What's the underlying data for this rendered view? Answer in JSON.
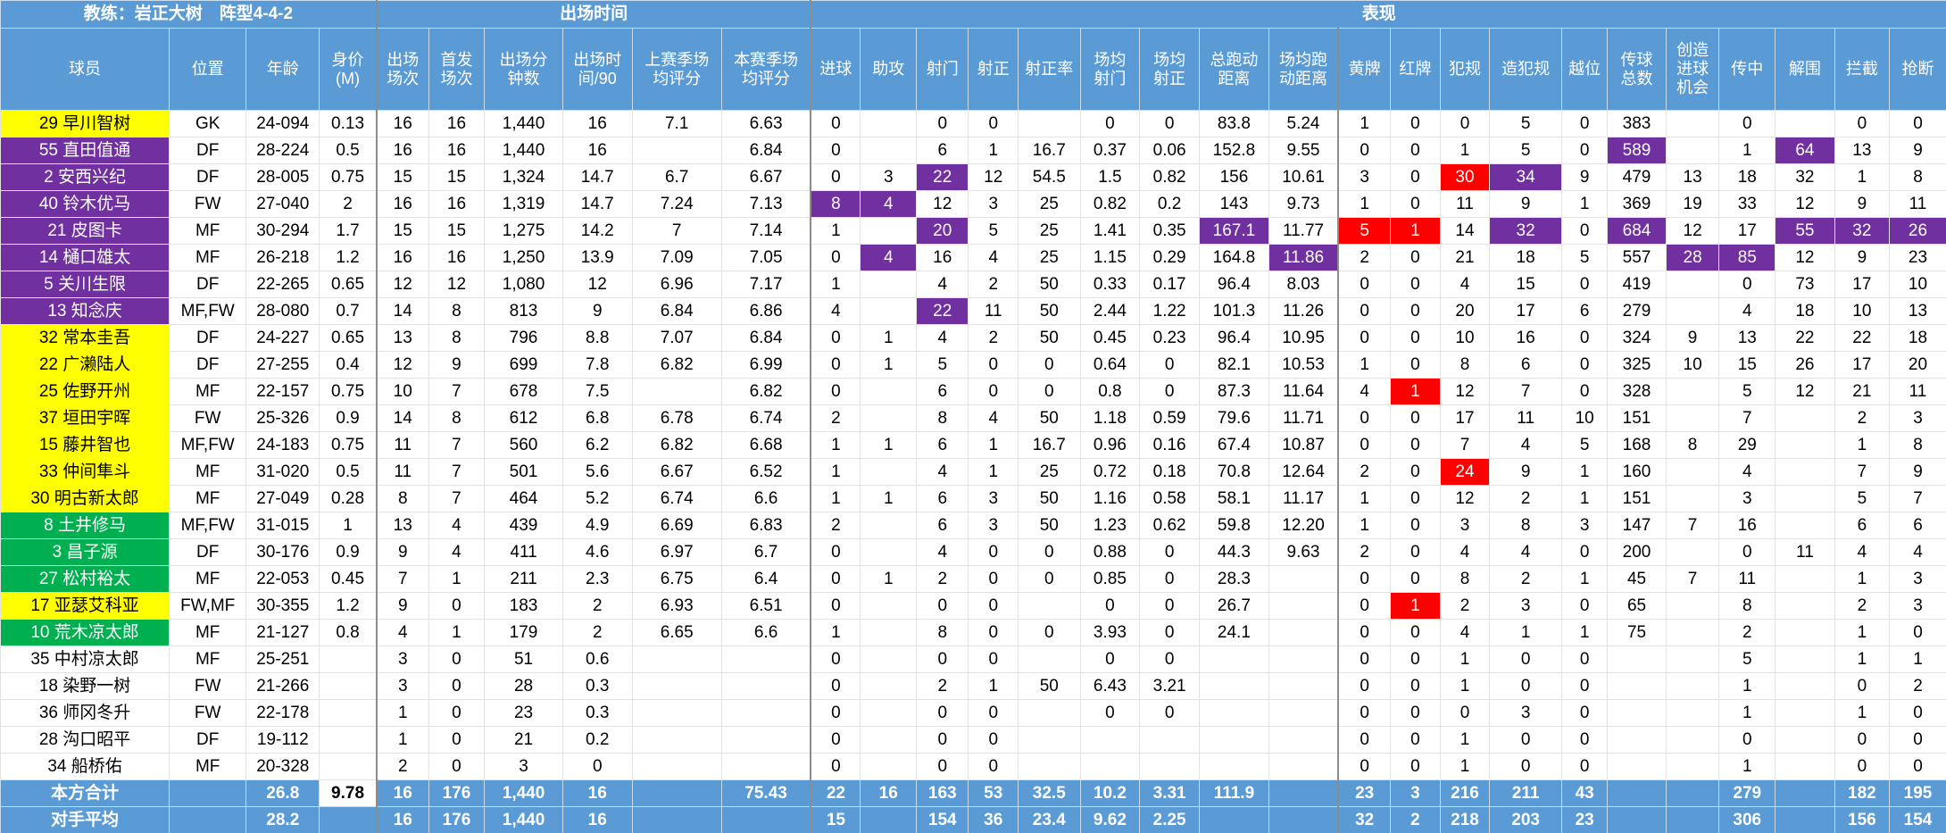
{
  "header": {
    "coach": "教练：岩正大树　阵型4-4-2",
    "groups": [
      "出场时间",
      "表现"
    ],
    "columns": [
      "球员",
      "位置",
      "年龄",
      "身价\n(M)",
      "出场\n场次",
      "首发\n场次",
      "出场分\n钟数",
      "出场时\n间/90",
      "上赛季场\n均评分",
      "本赛季场\n均评分",
      "进球",
      "助攻",
      "射门",
      "射正",
      "射正率",
      "场均\n射门",
      "场均\n射正",
      "总跑动\n距离",
      "场均跑\n动距离",
      "黄牌",
      "红牌",
      "犯规",
      "造犯规",
      "越位",
      "传球\n总数",
      "创造\n进球\n机会",
      "传中",
      "解围",
      "拦截",
      "抢断"
    ]
  },
  "styles": {
    "purple": {
      "fill": "#7030a0",
      "color": "#ffffff"
    },
    "red": {
      "fill": "#ff0000",
      "color": "#ffffff"
    },
    "white": {
      "fill": "#ffffff",
      "color": "#000000"
    }
  },
  "table": {
    "rows": [
      {
        "player": "29 早川智树",
        "fill": "#ffff00",
        "color": "#000000",
        "cells": [
          "GK",
          "24-094",
          "0.13",
          "16",
          "16",
          "1,440",
          "16",
          "7.1",
          "6.63",
          "0",
          null,
          "0",
          "0",
          null,
          "0",
          "0",
          "83.8",
          "5.24",
          "1",
          "0",
          "0",
          "5",
          "0",
          "383",
          null,
          "0",
          null,
          "0",
          "0"
        ]
      },
      {
        "player": "55 直田值通",
        "fill": "#7030a0",
        "color": "#ffffff",
        "cells": [
          "DF",
          "28-224",
          "0.5",
          "16",
          "16",
          "1,440",
          "16",
          null,
          "6.84",
          "0",
          null,
          "6",
          "1",
          "16.7",
          "0.37",
          "0.06",
          "152.8",
          "9.55",
          "0",
          "0",
          "1",
          "5",
          "0",
          {
            "value": "589",
            "style": "purple"
          },
          null,
          "1",
          {
            "value": "64",
            "style": "purple"
          },
          "13",
          "9"
        ]
      },
      {
        "player": "2 安西兴纪",
        "fill": "#7030a0",
        "color": "#ffffff",
        "cells": [
          "DF",
          "28-005",
          "0.75",
          "15",
          "15",
          "1,324",
          "14.7",
          "6.7",
          "6.67",
          "0",
          "3",
          {
            "value": "22",
            "style": "purple"
          },
          "12",
          "54.5",
          "1.5",
          "0.82",
          "156",
          "10.61",
          "3",
          "0",
          {
            "value": "30",
            "style": "red"
          },
          {
            "value": "34",
            "style": "purple"
          },
          "9",
          "479",
          "13",
          "18",
          "32",
          "1",
          "8"
        ]
      },
      {
        "player": "40 铃木优马",
        "fill": "#7030a0",
        "color": "#ffffff",
        "cells": [
          "FW",
          "27-040",
          "2",
          "16",
          "16",
          "1,319",
          "14.7",
          "7.24",
          "7.13",
          {
            "value": "8",
            "style": "purple"
          },
          {
            "value": "4",
            "style": "purple"
          },
          "12",
          "3",
          "25",
          "0.82",
          "0.2",
          "143",
          "9.73",
          "1",
          "0",
          "11",
          "9",
          "1",
          "369",
          "19",
          "33",
          "12",
          "9",
          "11"
        ]
      },
      {
        "player": "21 皮图卡",
        "fill": "#7030a0",
        "color": "#ffffff",
        "cells": [
          "MF",
          "30-294",
          "1.7",
          "15",
          "15",
          "1,275",
          "14.2",
          "7",
          "7.14",
          "1",
          null,
          {
            "value": "20",
            "style": "purple"
          },
          "5",
          "25",
          "1.41",
          "0.35",
          {
            "value": "167.1",
            "style": "purple"
          },
          "11.77",
          {
            "value": "5",
            "style": "red"
          },
          {
            "value": "1",
            "style": "red"
          },
          "14",
          {
            "value": "32",
            "style": "purple"
          },
          "0",
          {
            "value": "684",
            "style": "purple"
          },
          "12",
          "17",
          {
            "value": "55",
            "style": "purple"
          },
          {
            "value": "32",
            "style": "purple"
          },
          {
            "value": "26",
            "style": "purple"
          }
        ]
      },
      {
        "player": "14 樋口雄太",
        "fill": "#7030a0",
        "color": "#ffffff",
        "cells": [
          "MF",
          "26-218",
          "1.2",
          "16",
          "16",
          "1,250",
          "13.9",
          "7.09",
          "7.05",
          "0",
          {
            "value": "4",
            "style": "purple"
          },
          "16",
          "4",
          "25",
          "1.15",
          "0.29",
          "164.8",
          {
            "value": "11.86",
            "style": "purple"
          },
          "2",
          "0",
          "21",
          "18",
          "5",
          "557",
          {
            "value": "28",
            "style": "purple"
          },
          {
            "value": "85",
            "style": "purple"
          },
          "12",
          "9",
          "23"
        ]
      },
      {
        "player": "5 关川生限",
        "fill": "#7030a0",
        "color": "#ffffff",
        "cells": [
          "DF",
          "22-265",
          "0.65",
          "12",
          "12",
          "1,080",
          "12",
          "6.96",
          "7.17",
          "1",
          null,
          "4",
          "2",
          "50",
          "0.33",
          "0.17",
          "96.4",
          "8.03",
          "0",
          "0",
          "4",
          "15",
          "0",
          "419",
          null,
          "0",
          "73",
          "17",
          "10"
        ]
      },
      {
        "player": "13 知念庆",
        "fill": "#7030a0",
        "color": "#ffffff",
        "cells": [
          "MF,FW",
          "28-080",
          "0.7",
          "14",
          "8",
          "813",
          "9",
          "6.84",
          "6.86",
          "4",
          null,
          {
            "value": "22",
            "style": "purple"
          },
          "11",
          "50",
          "2.44",
          "1.22",
          "101.3",
          "11.26",
          "0",
          "0",
          "20",
          "17",
          "6",
          "279",
          null,
          "4",
          "18",
          "10",
          "13"
        ]
      },
      {
        "player": "32 常本圭吾",
        "fill": "#ffff00",
        "color": "#000000",
        "cells": [
          "DF",
          "24-227",
          "0.65",
          "13",
          "8",
          "796",
          "8.8",
          "7.07",
          "6.84",
          "0",
          "1",
          "4",
          "2",
          "50",
          "0.45",
          "0.23",
          "96.4",
          "10.95",
          "0",
          "0",
          "10",
          "16",
          "0",
          "324",
          "9",
          "13",
          "22",
          "22",
          "18"
        ]
      },
      {
        "player": "22 广濑陆人",
        "fill": "#ffff00",
        "color": "#000000",
        "cells": [
          "DF",
          "27-255",
          "0.4",
          "12",
          "9",
          "699",
          "7.8",
          "6.82",
          "6.99",
          "0",
          "1",
          "5",
          "0",
          "0",
          "0.64",
          "0",
          "82.1",
          "10.53",
          "1",
          "0",
          "8",
          "6",
          "0",
          "325",
          "10",
          "15",
          "26",
          "17",
          "20"
        ]
      },
      {
        "player": "25 佐野开州",
        "fill": "#ffff00",
        "color": "#000000",
        "cells": [
          "MF",
          "22-157",
          "0.75",
          "10",
          "7",
          "678",
          "7.5",
          null,
          "6.82",
          "0",
          null,
          "6",
          "0",
          "0",
          "0.8",
          "0",
          "87.3",
          "11.64",
          "4",
          {
            "value": "1",
            "style": "red"
          },
          "12",
          "7",
          "0",
          "328",
          null,
          "5",
          "12",
          "21",
          "11"
        ]
      },
      {
        "player": "37 垣田宇晖",
        "fill": "#ffff00",
        "color": "#000000",
        "cells": [
          "FW",
          "25-326",
          "0.9",
          "14",
          "8",
          "612",
          "6.8",
          "6.78",
          "6.74",
          "2",
          null,
          "8",
          "4",
          "50",
          "1.18",
          "0.59",
          "79.6",
          "11.71",
          "0",
          "0",
          "17",
          "11",
          "10",
          "151",
          null,
          "7",
          null,
          "2",
          "3"
        ]
      },
      {
        "player": "15 藤井智也",
        "fill": "#ffff00",
        "color": "#000000",
        "cells": [
          "MF,FW",
          "24-183",
          "0.75",
          "11",
          "7",
          "560",
          "6.2",
          "6.82",
          "6.68",
          "1",
          "1",
          "6",
          "1",
          "16.7",
          "0.96",
          "0.16",
          "67.4",
          "10.87",
          "0",
          "0",
          "7",
          "4",
          "5",
          "168",
          "8",
          "29",
          null,
          "1",
          "8"
        ]
      },
      {
        "player": "33 仲间隼斗",
        "fill": "#ffff00",
        "color": "#000000",
        "cells": [
          "MF",
          "31-020",
          "0.5",
          "11",
          "7",
          "501",
          "5.6",
          "6.67",
          "6.52",
          "1",
          null,
          "4",
          "1",
          "25",
          "0.72",
          "0.18",
          "70.8",
          "12.64",
          "2",
          "0",
          {
            "value": "24",
            "style": "red"
          },
          "9",
          "1",
          "160",
          null,
          "4",
          null,
          "7",
          "9"
        ]
      },
      {
        "player": "30 明古新太郎",
        "fill": "#ffff00",
        "color": "#000000",
        "cells": [
          "MF",
          "27-049",
          "0.28",
          "8",
          "7",
          "464",
          "5.2",
          "6.74",
          "6.6",
          "1",
          "1",
          "6",
          "3",
          "50",
          "1.16",
          "0.58",
          "58.1",
          "11.17",
          "1",
          "0",
          "12",
          "2",
          "1",
          "151",
          null,
          "3",
          null,
          "5",
          "7"
        ]
      },
      {
        "player": "8 土井修马",
        "fill": "#00b050",
        "color": "#ffffff",
        "cells": [
          "MF,FW",
          "31-015",
          "1",
          "13",
          "4",
          "439",
          "4.9",
          "6.69",
          "6.83",
          "2",
          null,
          "6",
          "3",
          "50",
          "1.23",
          "0.62",
          "59.8",
          "12.20",
          "1",
          "0",
          "3",
          "8",
          "3",
          "147",
          "7",
          "16",
          null,
          "6",
          "6"
        ]
      },
      {
        "player": "3 昌子源",
        "fill": "#00b050",
        "color": "#ffffff",
        "cells": [
          "DF",
          "30-176",
          "0.9",
          "9",
          "4",
          "411",
          "4.6",
          "6.97",
          "6.7",
          "0",
          null,
          "4",
          "0",
          "0",
          "0.88",
          "0",
          "44.3",
          "9.63",
          "2",
          "0",
          "4",
          "4",
          "0",
          "200",
          null,
          "0",
          "11",
          "4",
          "4"
        ]
      },
      {
        "player": "27 松村裕太",
        "fill": "#00b050",
        "color": "#ffffff",
        "cells": [
          "MF",
          "22-053",
          "0.45",
          "7",
          "1",
          "211",
          "2.3",
          "6.75",
          "6.4",
          "0",
          "1",
          "2",
          "0",
          "0",
          "0.85",
          "0",
          "28.3",
          null,
          "0",
          "0",
          "8",
          "2",
          "1",
          "45",
          "7",
          "11",
          null,
          "1",
          "3"
        ]
      },
      {
        "player": "17 亚瑟艾科亚",
        "fill": "#ffff00",
        "color": "#000000",
        "cells": [
          "FW,MF",
          "30-355",
          "1.2",
          "9",
          "0",
          "183",
          "2",
          "6.93",
          "6.51",
          "0",
          null,
          "0",
          "0",
          null,
          "0",
          "0",
          "26.7",
          null,
          "0",
          {
            "value": "1",
            "style": "red"
          },
          "2",
          "3",
          "0",
          "65",
          null,
          "8",
          null,
          "2",
          "3"
        ]
      },
      {
        "player": "10 荒木凉太郎",
        "fill": "#00b050",
        "color": "#ffffff",
        "cells": [
          "MF",
          "21-127",
          "0.8",
          "4",
          "1",
          "179",
          "2",
          "6.65",
          "6.6",
          "1",
          null,
          "8",
          "0",
          "0",
          "3.93",
          "0",
          "24.1",
          null,
          "0",
          "0",
          "4",
          "1",
          "1",
          "75",
          null,
          "2",
          null,
          "1",
          "0"
        ]
      },
      {
        "player": "35 中村凉太郎",
        "fill": "#ffffff",
        "color": "#000000",
        "cells": [
          "MF",
          "25-251",
          null,
          "3",
          "0",
          "51",
          "0.6",
          null,
          null,
          "0",
          null,
          "0",
          "0",
          null,
          "0",
          "0",
          null,
          null,
          "0",
          "0",
          "1",
          "0",
          "0",
          null,
          null,
          "5",
          null,
          "1",
          "1"
        ]
      },
      {
        "player": "18 染野一树",
        "fill": "#ffffff",
        "color": "#000000",
        "cells": [
          "FW",
          "21-266",
          null,
          "3",
          "0",
          "28",
          "0.3",
          null,
          null,
          "0",
          null,
          "2",
          "1",
          "50",
          "6.43",
          "3.21",
          null,
          null,
          "0",
          "0",
          "1",
          "0",
          "0",
          null,
          null,
          "1",
          null,
          "0",
          "2"
        ]
      },
      {
        "player": "36 师冈冬升",
        "fill": "#ffffff",
        "color": "#000000",
        "cells": [
          "FW",
          "22-178",
          null,
          "1",
          "0",
          "23",
          "0.3",
          null,
          null,
          "0",
          null,
          "0",
          "0",
          null,
          "0",
          "0",
          null,
          null,
          "0",
          "0",
          "0",
          "3",
          "0",
          null,
          null,
          "1",
          null,
          "1",
          "0"
        ]
      },
      {
        "player": "28 沟口昭平",
        "fill": "#ffffff",
        "color": "#000000",
        "cells": [
          "DF",
          "19-112",
          null,
          "1",
          "0",
          "21",
          "0.2",
          null,
          null,
          "0",
          null,
          "0",
          "0",
          null,
          null,
          null,
          null,
          null,
          "0",
          "0",
          "1",
          "0",
          "0",
          null,
          null,
          "0",
          null,
          "0",
          "0"
        ]
      },
      {
        "player": "34 船桥佑",
        "fill": "#ffffff",
        "color": "#000000",
        "cells": [
          "MF",
          "20-328",
          null,
          "2",
          "0",
          "3",
          "0",
          null,
          null,
          "0",
          null,
          "0",
          "0",
          null,
          null,
          null,
          null,
          null,
          "0",
          "0",
          "1",
          "0",
          "0",
          null,
          null,
          "1",
          null,
          "0",
          "0"
        ]
      }
    ],
    "footer": [
      {
        "label": "本方合计",
        "cells": [
          null,
          "26.8",
          {
            "value": "9.78",
            "style": "white"
          },
          "16",
          "176",
          "1,440",
          "16",
          null,
          "75.43",
          "22",
          "16",
          "163",
          "53",
          "32.5",
          "10.2",
          "3.31",
          "111.9",
          null,
          "23",
          "3",
          "216",
          "211",
          "43",
          null,
          null,
          "279",
          null,
          "182",
          "195"
        ]
      },
      {
        "label": "对手平均",
        "cells": [
          null,
          "28.2",
          null,
          "16",
          "176",
          "1,440",
          "16",
          null,
          null,
          "15",
          null,
          "154",
          "36",
          "23.4",
          "9.62",
          "2.25",
          null,
          null,
          "32",
          "2",
          "218",
          "203",
          "23",
          null,
          null,
          "306",
          null,
          "156",
          "154"
        ]
      }
    ]
  }
}
